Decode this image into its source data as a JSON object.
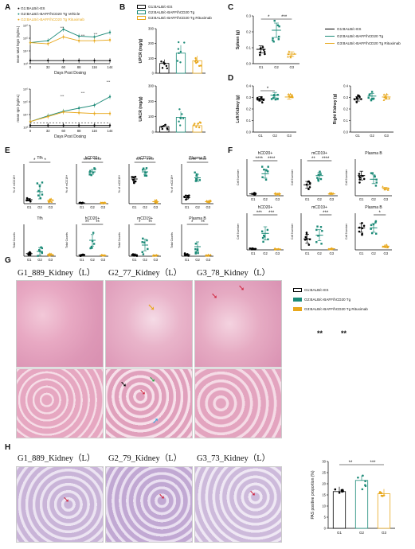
{
  "colors": {
    "g1": "#000000",
    "g2": "#1b8a77",
    "g3": "#e8a81c"
  },
  "panels": {
    "A": "A",
    "B": "B",
    "C": "C",
    "D": "D",
    "E": "E",
    "F": "F",
    "G": "G",
    "H": "H"
  },
  "legend_groups": [
    "G1:BALB/c-ES",
    "G2:BALB/c-BAFF/hCD20 Tg Vehicle",
    "G3:BALB/c-BAFF/hCD20 Tg Rituximab"
  ],
  "legend_groups_short": [
    "G1:BALB/c-ES",
    "G2:BALB/c-BAFF/hCD20 Tg",
    "G3:BALB/c-BAFF/hCD20 Tg Rituximab"
  ],
  "legend_groups_G": [
    "G1:BALB/c-ES",
    "G2:BALB/c-BAFF/hCD20 Tg",
    "G3:BALB/c-BAFF/hCD20 Tg Rituximab"
  ],
  "A": {
    "xlabel": "Days Post Dosing",
    "xticks": [
      "0",
      "32",
      "60",
      "88",
      "116",
      "144"
    ],
    "ylabel_top": "mean total hIgG (ng/mL)",
    "ylabel_bottom": "mean IgG (ng/mL)"
  },
  "B": {
    "top_ylabel": "UPCR (mg/g)",
    "top_yticks": [
      "0",
      "100",
      "200",
      "300"
    ],
    "bot_ylabel": "UACR (mg/g)",
    "bot_yticks": [
      "0",
      "100",
      "200",
      "300"
    ]
  },
  "C": {
    "ylabel": "Spleen (g)",
    "yticks": [
      "0.0",
      "0.1",
      "0.2",
      "0.3"
    ],
    "sig": [
      "*",
      "***"
    ]
  },
  "D": {
    "left_ylabel": "Left Kidney (g)",
    "right_ylabel": "Right Kidney (g)",
    "yticks": [
      "0.0",
      "0.1",
      "0.2",
      "0.3",
      "0.4"
    ],
    "sig": [
      "*"
    ]
  },
  "E": {
    "top_titles": [
      "Tfh",
      "hCD20+",
      "mCD19+",
      "Plasma B"
    ],
    "bottom_titles": [
      "Tfh",
      "hCD20+",
      "mCD19+",
      "Plasma B"
    ],
    "top_sig": [
      [
        "*",
        "*"
      ],
      [
        "****",
        "****"
      ],
      [
        "****",
        "****"
      ],
      [
        "****",
        "****"
      ]
    ],
    "bottom_sig": [
      [],
      [
        "**",
        "**"
      ],
      [
        "*",
        "**"
      ],
      [
        "*",
        "**"
      ]
    ],
    "xticks": [
      "G1",
      "G2",
      "G3"
    ]
  },
  "F": {
    "top_titles": [
      "hCD20+",
      "mCD19+",
      "Plasma B"
    ],
    "bottom_titles": [
      "hCD20+",
      "mCD19+",
      "Plasma B"
    ],
    "top_sig": [
      [
        "****",
        "****"
      ],
      [
        "**",
        "****"
      ],
      []
    ],
    "bottom_sig": [
      [
        "***",
        "***"
      ],
      [
        "***"
      ],
      [
        "*"
      ]
    ]
  },
  "G": {
    "headers": [
      "G1_889_Kidney（L）",
      "G2_77_Kidney（L）",
      "G3_78_Kidney（L）"
    ],
    "sig": [
      "**",
      "**"
    ]
  },
  "H": {
    "headers": [
      "G1_889_Kidney（L）",
      "G2_79_Kidney（L）",
      "G3_73_Kidney（L）"
    ],
    "chart": {
      "ylabel": "PAS positive proportion (%)",
      "yticks": [
        "0",
        "5",
        "10",
        "15",
        "20",
        "25",
        "30"
      ],
      "xticks": [
        "G1",
        "G2",
        "G3"
      ],
      "sig": [
        "**",
        "***"
      ]
    }
  },
  "chart_data": [
    {
      "type": "bar",
      "title": "PAS positive proportion",
      "xlabel": "",
      "ylabel": "PAS positive proportion (%)",
      "ylim": [
        0,
        30
      ],
      "categories": [
        "G1",
        "G2",
        "G3"
      ],
      "values": [
        16.5,
        21.5,
        15.5
      ]
    },
    {
      "type": "bar",
      "title": "",
      "xlabel": "",
      "ylabel": "Spleen (g)",
      "ylim": [
        0,
        0.3
      ],
      "categories": [
        "G1",
        "G2",
        "G3"
      ],
      "values": [
        0.09,
        0.22,
        0.06
      ]
    },
    {
      "type": "line",
      "title": "",
      "xlabel": "Days Post Dosing",
      "ylabel": "mean total hIgG (ng/mL)",
      "x": [
        0,
        32,
        60,
        88,
        116,
        144
      ],
      "series": [
        {
          "name": "G1:BALB/c-ES",
          "values": [
            1,
            1,
            1,
            1,
            1,
            1
          ]
        },
        {
          "name": "G2:BALB/c-BAFF/hCD20 Tg Vehicle",
          "values": [
            3,
            4,
            9,
            7,
            7,
            8
          ]
        },
        {
          "name": "G3:BALB/c-BAFF/hCD20 Tg Rituximab",
          "values": [
            3,
            3,
            5,
            4,
            4,
            4
          ]
        }
      ]
    }
  ]
}
